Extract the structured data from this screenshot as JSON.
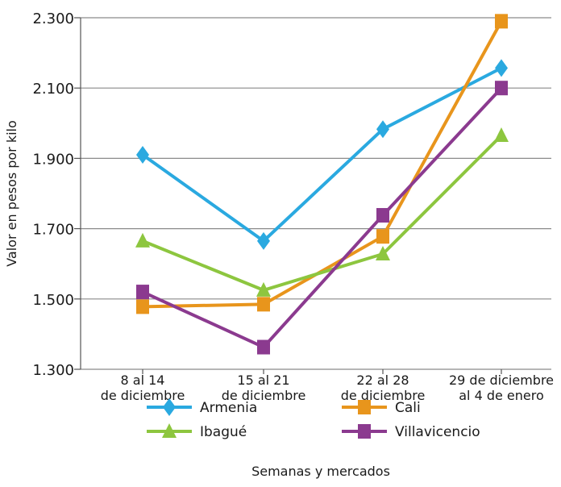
{
  "chart_data": {
    "type": "line",
    "title": "",
    "xlabel": "Semanas y mercados",
    "ylabel": "Valor en pesos por kilo",
    "ylim": [
      1300,
      2300
    ],
    "yticks": [
      1300,
      1500,
      1700,
      1900,
      2100,
      2300
    ],
    "ytick_labels": [
      "1.300",
      "1.500",
      "1.700",
      "1.900",
      "2.100",
      "2.300"
    ],
    "grid": "horizontal",
    "legend_position": "bottom",
    "categories": [
      [
        "8 al 14",
        "de diciembre"
      ],
      [
        "15 al 21",
        "de diciembre"
      ],
      [
        "22 al 28",
        "de diciembre"
      ],
      [
        "29 de diciembre",
        "al 4 de enero"
      ]
    ],
    "series": [
      {
        "name": "Armenia",
        "color": "#2aa9e0",
        "marker": "diamond",
        "values": [
          1910,
          1665,
          1983,
          2157
        ]
      },
      {
        "name": "Cali",
        "color": "#e8951c",
        "marker": "square",
        "values": [
          1478,
          1485,
          1678,
          2290
        ]
      },
      {
        "name": "Ibagué",
        "color": "#8dc63f",
        "marker": "triangle",
        "values": [
          1665,
          1525,
          1628,
          1965
        ]
      },
      {
        "name": "Villavicencio",
        "color": "#8b3a8f",
        "marker": "square",
        "values": [
          1520,
          1363,
          1738,
          2100
        ]
      }
    ]
  }
}
